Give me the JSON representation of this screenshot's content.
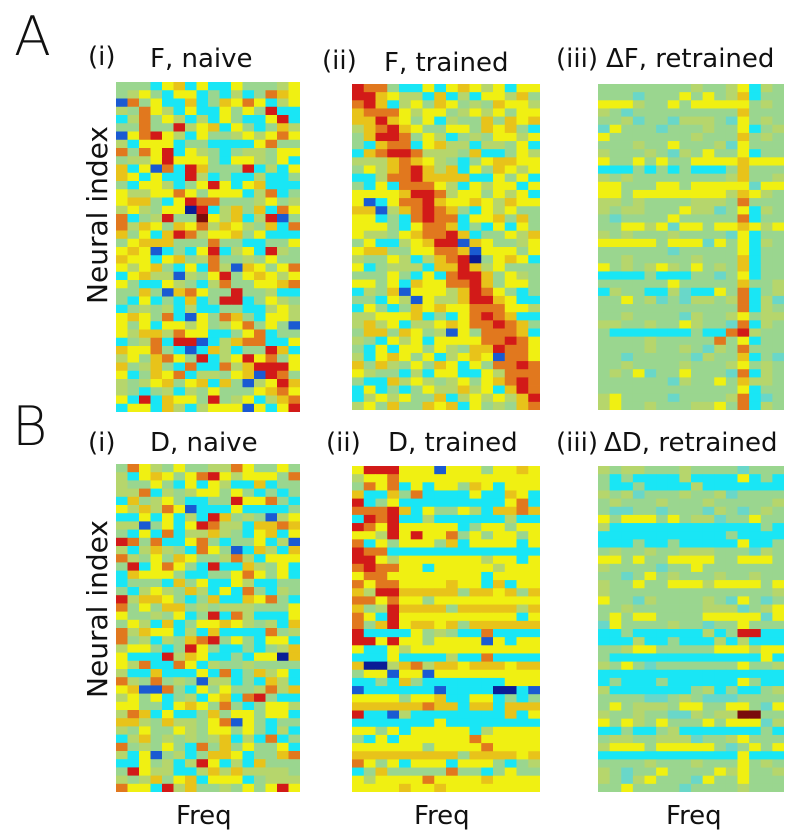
{
  "sections": [
    {
      "letter": "A",
      "ylabel": "Neural index"
    },
    {
      "letter": "B",
      "ylabel": "Neural index"
    }
  ],
  "panels": [
    {
      "roman": "(i)",
      "title": "F, naive",
      "xlabel": ""
    },
    {
      "roman": "(ii)",
      "title": "F, trained",
      "xlabel": ""
    },
    {
      "roman": "(iii)",
      "title": "ΔF, retrained",
      "xlabel": ""
    },
    {
      "roman": "(i)",
      "title": "D, naive",
      "xlabel": "Freq"
    },
    {
      "roman": "(ii)",
      "title": "D, trained",
      "xlabel": "Freq"
    },
    {
      "roman": "(iii)",
      "title": "ΔD, retrained",
      "xlabel": "Freq"
    }
  ],
  "colors": {
    "colormap": [
      "#0a1c96",
      "#1a5ad2",
      "#19e6f5",
      "#69d7c9",
      "#9ad68f",
      "#b6d66c",
      "#f0f012",
      "#e8c31a",
      "#e1781e",
      "#d21a18",
      "#7a0c0c"
    ]
  },
  "chart_data": [
    {
      "type": "heatmap",
      "title": "F, naive",
      "xlabel": "",
      "ylabel": "Neural index",
      "rows": 40,
      "cols": 16,
      "structure": "random with diagonal ridge",
      "ridge": [
        [
          0,
          0.6
        ],
        [
          40,
          15.4
        ]
      ]
    },
    {
      "type": "heatmap",
      "title": "F, trained",
      "xlabel": "",
      "ylabel": "Neural index",
      "rows": 40,
      "cols": 16,
      "structure": "strong diagonal ridge",
      "ridge": [
        [
          0,
          0.3
        ],
        [
          40,
          15.8
        ]
      ]
    },
    {
      "type": "heatmap",
      "title": "ΔF, retrained",
      "xlabel": "",
      "ylabel": "Neural index",
      "rows": 40,
      "cols": 16,
      "structure": "mostly neutral with horizontal bands and a vertical stripe near column 12",
      "vstripe": 12
    },
    {
      "type": "heatmap",
      "title": "D, naive",
      "xlabel": "Freq",
      "ylabel": "Neural index",
      "rows": 40,
      "cols": 16,
      "structure": "random"
    },
    {
      "type": "heatmap",
      "title": "D, trained",
      "xlabel": "Freq",
      "ylabel": "Neural index",
      "rows": 40,
      "cols": 16,
      "structure": "horizontal bands, warm upper left"
    },
    {
      "type": "heatmap",
      "title": "ΔD, retrained",
      "xlabel": "Freq",
      "ylabel": "Neural index",
      "rows": 40,
      "cols": 16,
      "structure": "mostly neutral with horizontal bands; strong cells near column 12",
      "vstripe": 12
    }
  ]
}
